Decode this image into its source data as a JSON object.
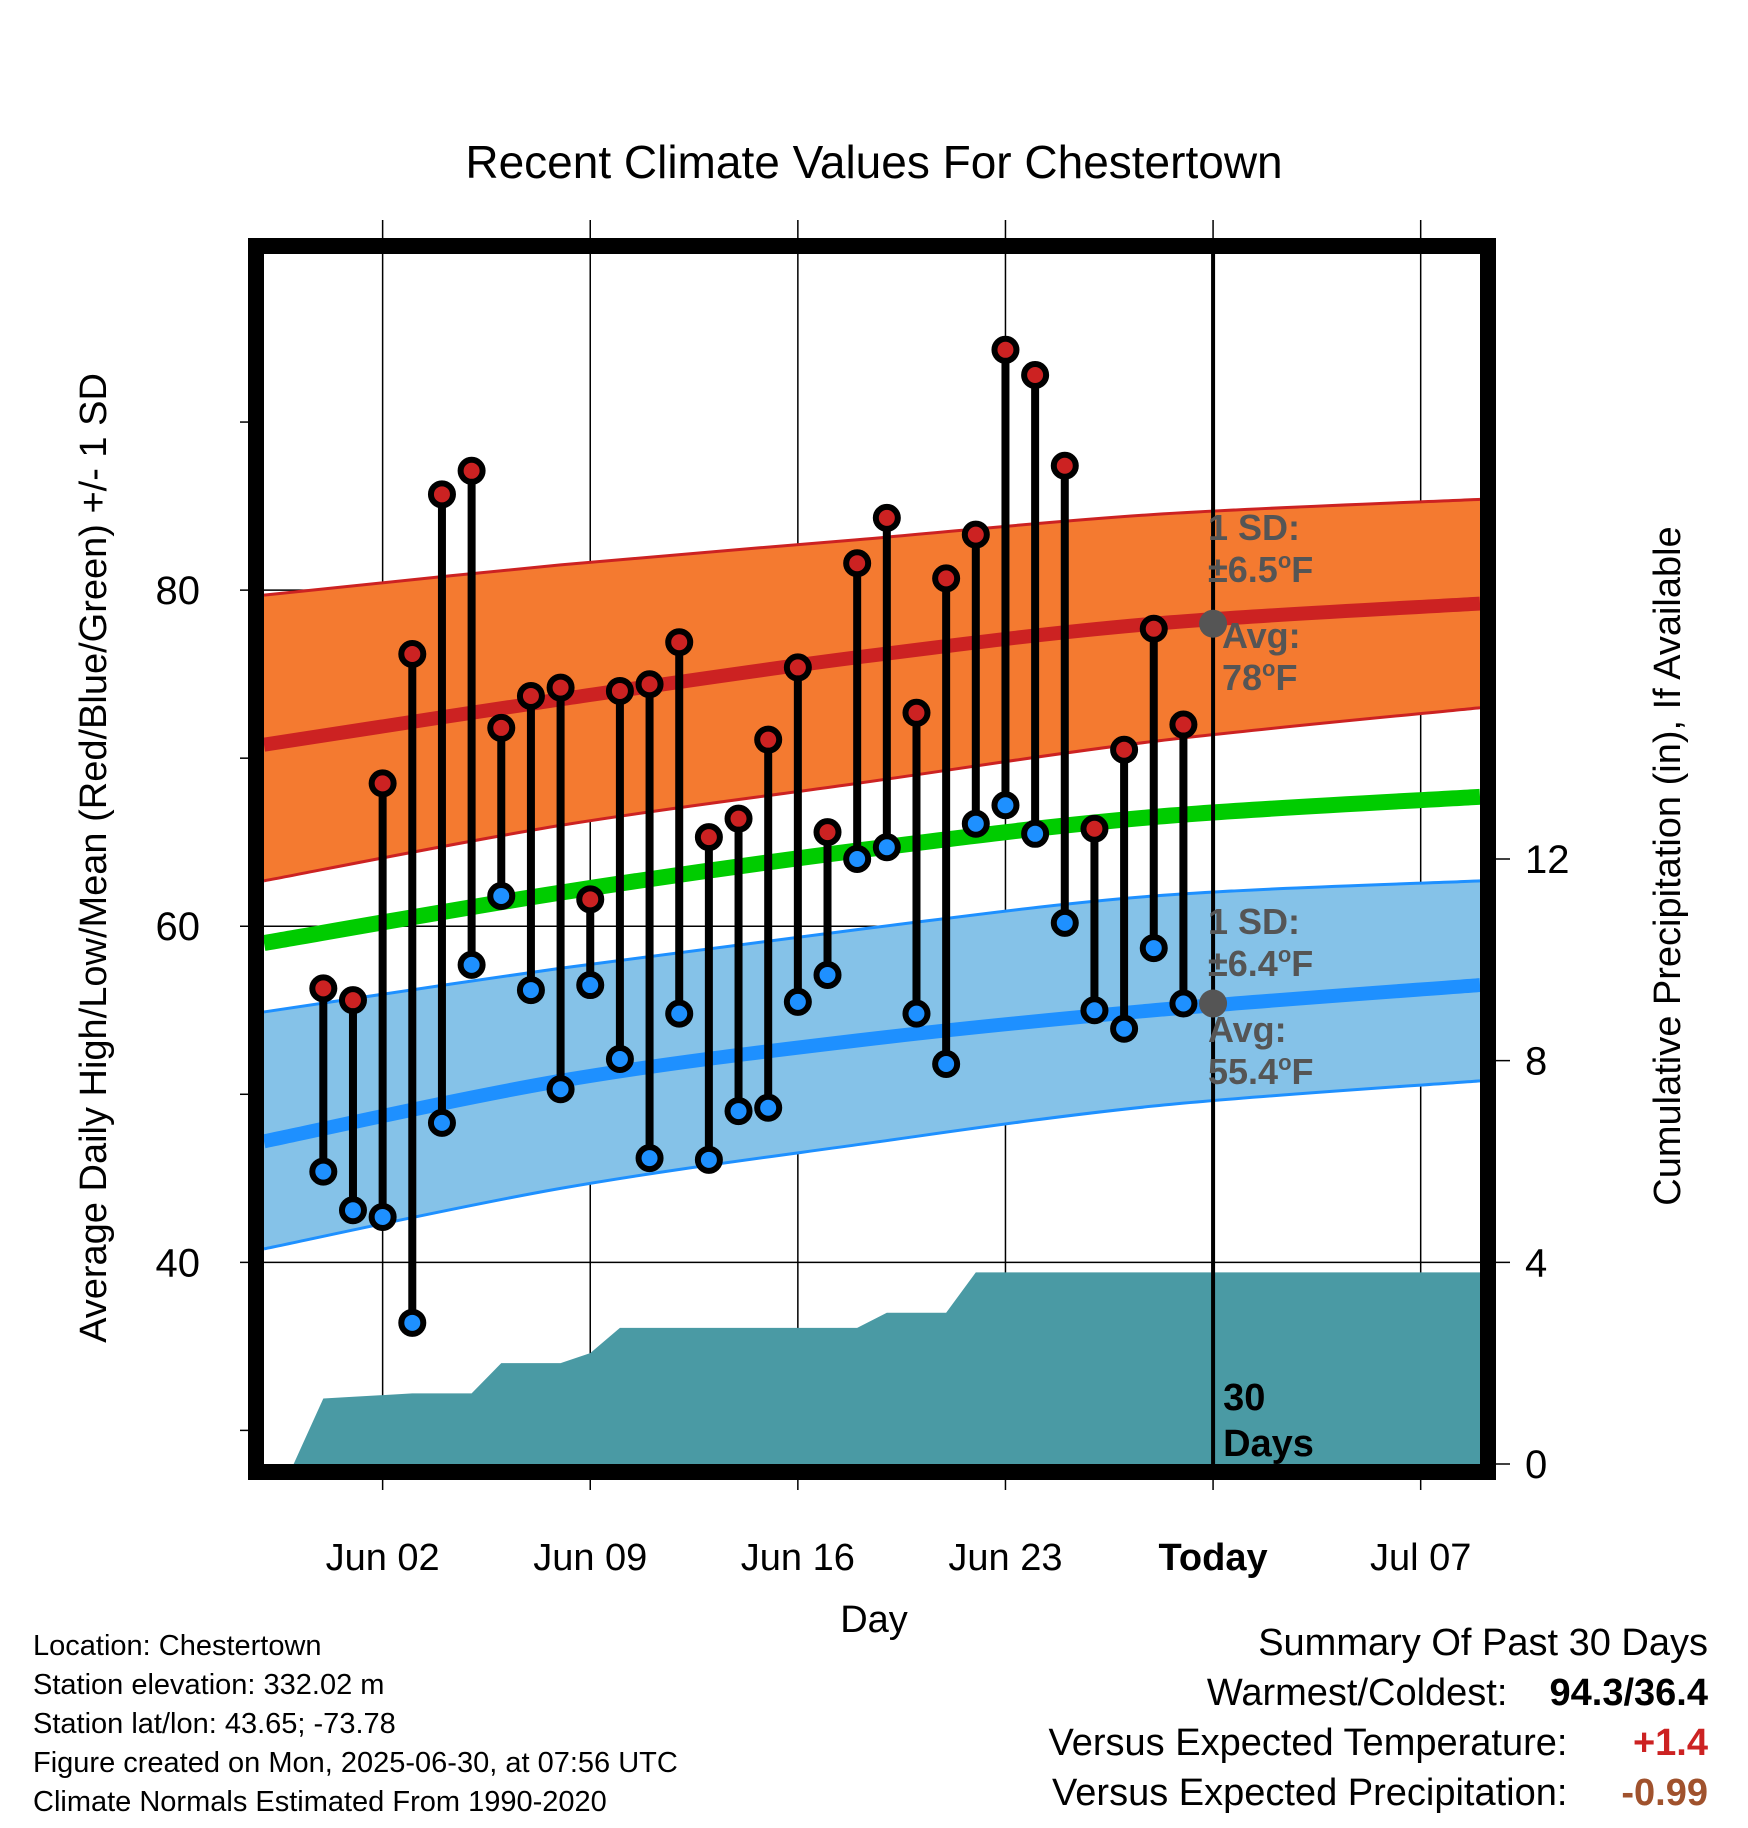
{
  "chart_data": {
    "type": "line",
    "title": "Recent Climate Values For Chestertown",
    "xlabel": "Day",
    "ylabel": "Average Daily High/Low/Mean (Red/Blue/Green) +/- 1 SD",
    "y2label": "Cumulative Precipitation (in), If Available",
    "x_ticks": [
      "Jun 02",
      "Jun 09",
      "Jun 16",
      "Jun 23",
      "Today",
      "Jul 07"
    ],
    "y_ticks": [
      "40",
      "60",
      "80"
    ],
    "y2_ticks": [
      "0",
      "4",
      "8",
      "12"
    ],
    "ylim": [
      28,
      100
    ],
    "y2lim": [
      0,
      24
    ],
    "xlim": [
      "2025-05-29",
      "2025-07-09"
    ],
    "today": "2025-06-30",
    "today_label_lines": [
      "30",
      "Days"
    ],
    "colors": {
      "high": "#cc2222",
      "high_band": "#f47a30",
      "low": "#1e90ff",
      "low_band": "#85c2e8",
      "mean": "#00cc00",
      "precip": "#4a9aa4",
      "annotation": "#555555",
      "positive": "#cc2222",
      "negative": "#a0522d"
    },
    "normals": {
      "dates": [
        "2025-05-29",
        "2025-06-08",
        "2025-06-18",
        "2025-06-28",
        "2025-07-09"
      ],
      "high_avg": [
        70.8,
        73.5,
        76.0,
        78.0,
        79.2
      ],
      "high_upper": [
        79.7,
        81.5,
        83.0,
        84.5,
        85.4
      ],
      "high_lower": [
        62.7,
        66.0,
        68.5,
        71.0,
        73.0
      ],
      "low_avg": [
        47.2,
        50.8,
        53.2,
        55.0,
        56.5
      ],
      "low_upper": [
        54.9,
        57.5,
        59.8,
        61.8,
        62.7
      ],
      "low_lower": [
        40.8,
        44.4,
        47.0,
        49.3,
        50.8
      ],
      "mean_avg": [
        59.0,
        62.0,
        64.5,
        66.5,
        67.7
      ]
    },
    "series": [
      {
        "name": "High",
        "dates": [
          "2025-05-31",
          "2025-06-01",
          "2025-06-02",
          "2025-06-03",
          "2025-06-04",
          "2025-06-05",
          "2025-06-06",
          "2025-06-07",
          "2025-06-08",
          "2025-06-09",
          "2025-06-10",
          "2025-06-11",
          "2025-06-12",
          "2025-06-13",
          "2025-06-14",
          "2025-06-15",
          "2025-06-16",
          "2025-06-17",
          "2025-06-18",
          "2025-06-19",
          "2025-06-20",
          "2025-06-21",
          "2025-06-22",
          "2025-06-23",
          "2025-06-24",
          "2025-06-25",
          "2025-06-26",
          "2025-06-27",
          "2025-06-28",
          "2025-06-29"
        ],
        "values": [
          56.3,
          55.6,
          68.5,
          76.2,
          85.7,
          87.1,
          71.8,
          73.7,
          74.2,
          61.6,
          74.0,
          74.4,
          76.9,
          65.3,
          66.4,
          71.1,
          75.4,
          65.6,
          81.6,
          84.3,
          72.7,
          80.7,
          83.3,
          94.3,
          92.8,
          87.4,
          65.8,
          70.5,
          77.7,
          72.0
        ]
      },
      {
        "name": "Low",
        "dates": [
          "2025-05-31",
          "2025-06-01",
          "2025-06-02",
          "2025-06-03",
          "2025-06-04",
          "2025-06-05",
          "2025-06-06",
          "2025-06-07",
          "2025-06-08",
          "2025-06-09",
          "2025-06-10",
          "2025-06-11",
          "2025-06-12",
          "2025-06-13",
          "2025-06-14",
          "2025-06-15",
          "2025-06-16",
          "2025-06-17",
          "2025-06-18",
          "2025-06-19",
          "2025-06-20",
          "2025-06-21",
          "2025-06-22",
          "2025-06-23",
          "2025-06-24",
          "2025-06-25",
          "2025-06-26",
          "2025-06-27",
          "2025-06-28",
          "2025-06-29"
        ],
        "values": [
          45.4,
          43.1,
          42.7,
          36.4,
          48.3,
          57.7,
          61.8,
          56.2,
          50.3,
          56.5,
          52.1,
          46.2,
          54.8,
          46.1,
          49.0,
          49.2,
          55.5,
          57.1,
          64.0,
          64.7,
          54.8,
          51.8,
          66.1,
          67.2,
          65.5,
          60.2,
          55.0,
          53.9,
          58.7,
          55.4
        ]
      }
    ],
    "precip": {
      "dates": [
        "2025-05-30",
        "2025-05-31",
        "2025-06-03",
        "2025-06-04",
        "2025-06-05",
        "2025-06-06",
        "2025-06-08",
        "2025-06-09",
        "2025-06-10",
        "2025-06-18",
        "2025-06-19",
        "2025-06-20",
        "2025-06-21",
        "2025-06-22",
        "2025-06-30",
        "2025-07-09"
      ],
      "values": [
        0.0,
        1.3,
        1.4,
        1.4,
        1.4,
        2.0,
        2.0,
        2.2,
        2.7,
        2.7,
        3.0,
        3.0,
        3.0,
        3.8,
        3.8,
        3.8
      ]
    },
    "annotations": {
      "high_sd": [
        "1 SD:",
        "±6.5°F"
      ],
      "high_avg": [
        "Avg:",
        "78°F"
      ],
      "low_sd": [
        "1 SD:",
        "±6.4°F"
      ],
      "low_avg": [
        "Avg:",
        "55.4°F"
      ]
    }
  },
  "info": {
    "location": "Location: Chestertown",
    "elevation": "Station elevation: 332.02 m",
    "latlon": "Station lat/lon: 43.65; -73.78",
    "created": "Figure created on Mon, 2025-06-30, at 07:56 UTC",
    "normals": "Climate Normals Estimated From 1990-2020"
  },
  "summary": {
    "heading": "Summary Of Past 30 Days",
    "warm_cold_label": "Warmest/Coldest:",
    "warm_cold_value": "94.3/36.4",
    "temp_label": "Versus Expected Temperature:",
    "temp_value": "+1.4",
    "precip_label": "Versus Expected Precipitation:",
    "precip_value": "-0.99"
  }
}
